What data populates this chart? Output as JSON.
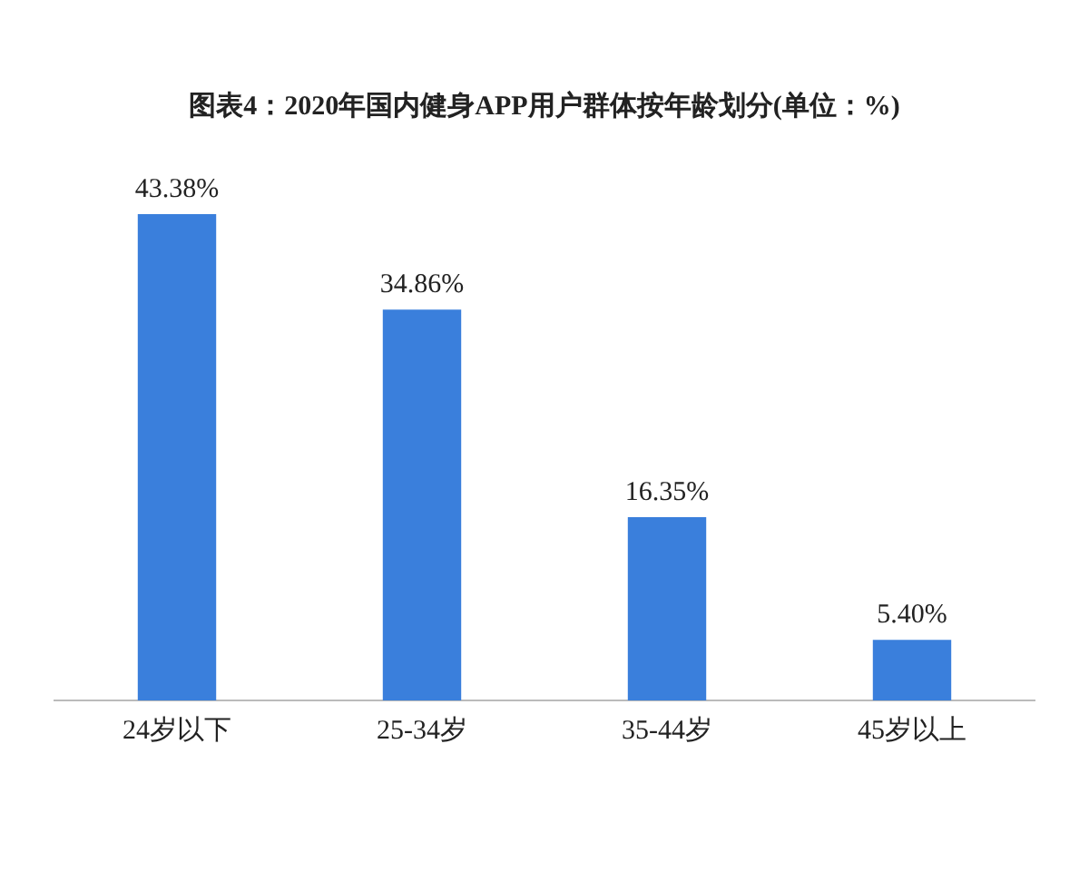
{
  "chart_data": {
    "type": "bar",
    "title": "图表4：2020年国内健身APP用户群体按年龄划分(单位：%)",
    "categories": [
      "24岁以下",
      "25-34岁",
      "35-44岁",
      "45岁以上"
    ],
    "values": [
      43.38,
      34.86,
      16.35,
      5.4
    ],
    "value_labels": [
      "43.38%",
      "34.86%",
      "16.35%",
      "5.40%"
    ],
    "color": "#3a7fdc",
    "grid": false,
    "legend": false
  }
}
